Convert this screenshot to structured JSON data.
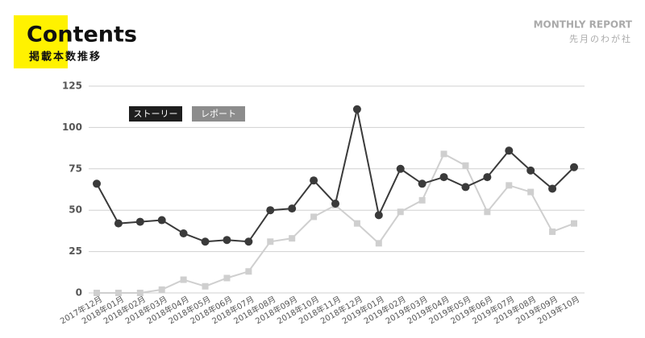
{
  "chart_data": {
    "type": "line",
    "title": "Contents",
    "subtitle": "掲載本数推移",
    "report_title": "MONTHLY REPORT",
    "report_subtitle": "先月のわが社",
    "categories": [
      "2017年12月",
      "2018年01月",
      "2018年02月",
      "2018年03月",
      "2018年04月",
      "2018年05月",
      "2018年06月",
      "2018年07月",
      "2018年08月",
      "2018年09月",
      "2018年10月",
      "2018年11月",
      "2018年12月",
      "2019年01月",
      "2019年02月",
      "2019年03月",
      "2019年04月",
      "2019年05月",
      "2019年06月",
      "2019年07月",
      "2019年08月",
      "2019年09月",
      "2019年10月"
    ],
    "series": [
      {
        "name": "ストーリー",
        "color": "#3a3a3a",
        "marker": "circle",
        "values": [
          66,
          42,
          43,
          44,
          36,
          31,
          32,
          31,
          50,
          51,
          68,
          54,
          111,
          47,
          75,
          66,
          70,
          64,
          70,
          86,
          74,
          63,
          76
        ]
      },
      {
        "name": "レポート",
        "color": "#cfcfcf",
        "marker": "square",
        "values": [
          0,
          0,
          0,
          2,
          8,
          4,
          9,
          13,
          31,
          33,
          46,
          53,
          42,
          30,
          49,
          56,
          84,
          77,
          49,
          65,
          61,
          37,
          42
        ]
      }
    ],
    "ylim": [
      0,
      125
    ],
    "yticks": [
      0,
      25,
      50,
      75,
      100,
      125
    ],
    "grid": true
  }
}
